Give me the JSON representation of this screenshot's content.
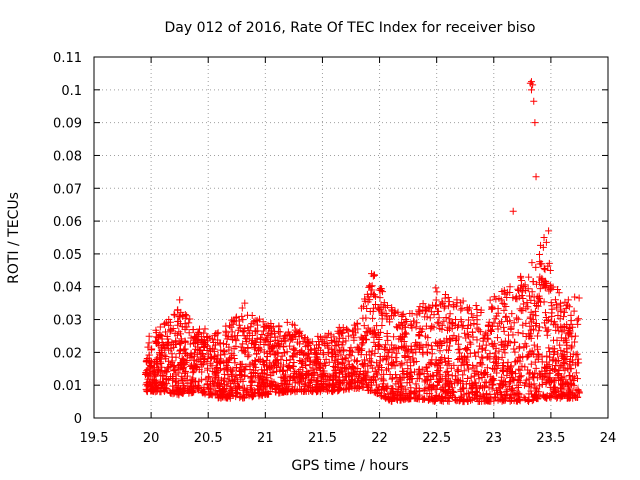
{
  "chart_data": {
    "type": "scatter",
    "title": "Day 012 of 2016, Rate Of TEC Index for receiver biso",
    "xlabel": "GPS time / hours",
    "ylabel": "ROTI / TECUs",
    "xlim": [
      19.5,
      24
    ],
    "ylim": [
      0,
      0.11
    ],
    "x_ticks": [
      19.5,
      20,
      20.5,
      21,
      21.5,
      22,
      22.5,
      23,
      23.5,
      24
    ],
    "x_tick_labels": [
      "19.5",
      "20",
      "20.5",
      "21",
      "21.5",
      "22",
      "22.5",
      "23",
      "23.5",
      "24"
    ],
    "y_ticks": [
      0,
      0.01,
      0.02,
      0.03,
      0.04,
      0.05,
      0.06,
      0.07,
      0.08,
      0.09,
      0.1,
      0.11
    ],
    "y_tick_labels": [
      "0",
      "0.01",
      "0.02",
      "0.03",
      "0.04",
      "0.05",
      "0.06",
      "0.07",
      "0.08",
      "0.09",
      "0.1",
      "0.11"
    ],
    "grid": true,
    "marker": "+",
    "series": [
      {
        "name": "ROTI",
        "color": "#ff0000",
        "x_range": [
          19.95,
          23.75
        ],
        "envelope": [
          {
            "x": 19.95,
            "low": 0.008,
            "high": 0.026
          },
          {
            "x": 20.1,
            "low": 0.008,
            "high": 0.028
          },
          {
            "x": 20.25,
            "low": 0.007,
            "high": 0.035
          },
          {
            "x": 20.4,
            "low": 0.008,
            "high": 0.028
          },
          {
            "x": 20.6,
            "low": 0.006,
            "high": 0.026
          },
          {
            "x": 20.8,
            "low": 0.006,
            "high": 0.034
          },
          {
            "x": 21.0,
            "low": 0.007,
            "high": 0.029
          },
          {
            "x": 21.2,
            "low": 0.008,
            "high": 0.03
          },
          {
            "x": 21.4,
            "low": 0.008,
            "high": 0.024
          },
          {
            "x": 21.6,
            "low": 0.008,
            "high": 0.027
          },
          {
            "x": 21.8,
            "low": 0.009,
            "high": 0.03
          },
          {
            "x": 21.95,
            "low": 0.008,
            "high": 0.044
          },
          {
            "x": 22.1,
            "low": 0.005,
            "high": 0.034
          },
          {
            "x": 22.3,
            "low": 0.006,
            "high": 0.032
          },
          {
            "x": 22.5,
            "low": 0.005,
            "high": 0.04
          },
          {
            "x": 22.7,
            "low": 0.005,
            "high": 0.036
          },
          {
            "x": 22.9,
            "low": 0.005,
            "high": 0.034
          },
          {
            "x": 23.1,
            "low": 0.005,
            "high": 0.04
          },
          {
            "x": 23.3,
            "low": 0.005,
            "high": 0.045
          },
          {
            "x": 23.45,
            "low": 0.006,
            "high": 0.056
          },
          {
            "x": 23.6,
            "low": 0.006,
            "high": 0.035
          },
          {
            "x": 23.75,
            "low": 0.006,
            "high": 0.04
          }
        ],
        "notable_points": [
          {
            "x": 23.17,
            "y": 0.063
          },
          {
            "x": 23.32,
            "y": 0.102
          },
          {
            "x": 23.33,
            "y": 0.1025
          },
          {
            "x": 23.34,
            "y": 0.1015
          },
          {
            "x": 23.33,
            "y": 0.1
          },
          {
            "x": 23.35,
            "y": 0.0965
          },
          {
            "x": 23.36,
            "y": 0.09
          },
          {
            "x": 23.37,
            "y": 0.0735
          },
          {
            "x": 23.44,
            "y": 0.055
          },
          {
            "x": 23.48,
            "y": 0.057
          },
          {
            "x": 23.42,
            "y": 0.047
          },
          {
            "x": 21.93,
            "y": 0.044
          },
          {
            "x": 20.25,
            "y": 0.036
          },
          {
            "x": 20.82,
            "y": 0.035
          }
        ]
      }
    ]
  }
}
